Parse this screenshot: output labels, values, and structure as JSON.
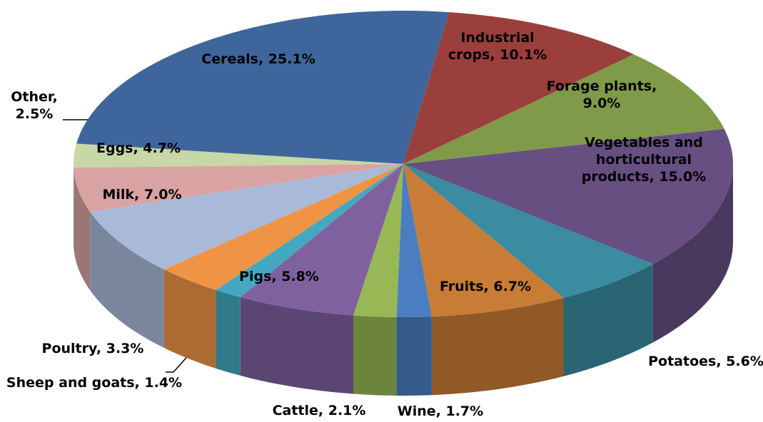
{
  "chart_data": {
    "type": "pie3d",
    "values": [
      10.1,
      9.0,
      15.0,
      5.6,
      6.7,
      1.7,
      2.1,
      5.8,
      1.4,
      3.3,
      7.0,
      4.7,
      2.5,
      25.1
    ],
    "value_labels": [
      "Industrial crops, 10.1%",
      "Forage plants, 9.0%",
      "Vegetables and horticultural products, 15.0%",
      "Potatoes, 5.6%",
      "Fruits, 6.7%",
      "Wine, 1.7%",
      "Cattle, 2.1%",
      "Pigs, 5.8%",
      "Sheep and goats, 1.4%",
      "Poultry, 3.3%",
      "Milk, 7.0%",
      "Eggs, 4.7%",
      "Other, 2.5%",
      "Cereals, 25.1%"
    ],
    "colors": [
      "#9b3f3d",
      "#7f9a48",
      "#674f82",
      "#3b8ca0",
      "#c97c35",
      "#4a7ec0",
      "#97b854",
      "#7f61a0",
      "#44a9c0",
      "#ef9445",
      "#a9bad8",
      "#d9a3a3",
      "#c7d7a5",
      "#3e669c"
    ]
  }
}
